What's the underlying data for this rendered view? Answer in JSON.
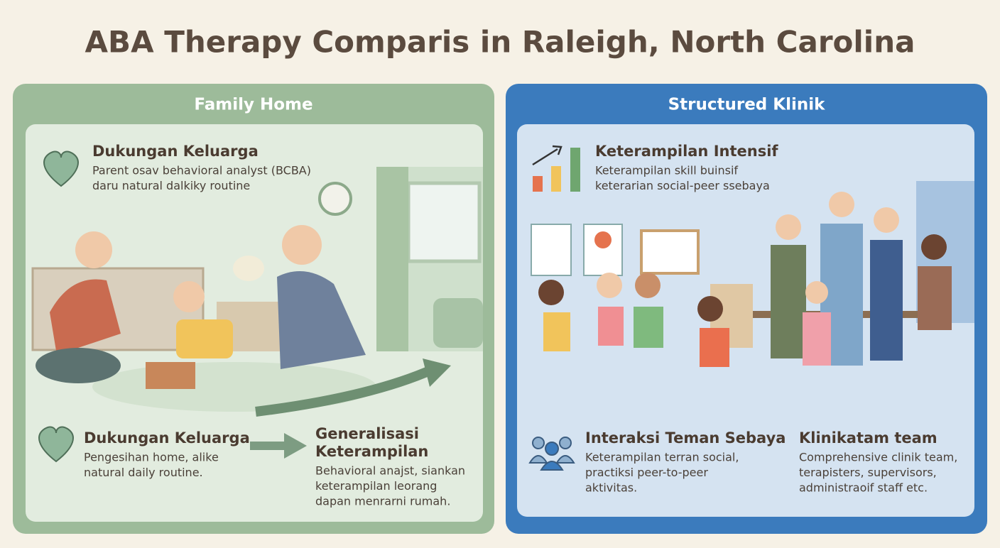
{
  "header": {
    "title": "ABA Therapy Comparis in Raleigh, North Carolina"
  },
  "panels": [
    {
      "title": "Family Home",
      "items": [
        {
          "title": [
            "Dukungan Keluarga"
          ],
          "text": [
            "Parent osav behavioral analyst (BCBA)",
            "daru natural dalkiky routine"
          ]
        },
        {
          "title": [
            "Dukungan Keluarga"
          ],
          "text": [
            "Pengesihan home, alike",
            "natural daily routine."
          ]
        },
        {
          "title": [
            "Generalisasi",
            "Keterampilan"
          ],
          "text": [
            "Behavioral anajst, siankan",
            "keterampilan leorang",
            "dapan menrarni rumah."
          ]
        }
      ]
    },
    {
      "title": "Structured Klinik",
      "items": [
        {
          "title": [
            "Keterampilan Intensif"
          ],
          "text": [
            "Keterampilan skill buinsif",
            "keterarian social-peer ssebaya"
          ]
        },
        {
          "title": [
            "Interaksi Teman Sebaya"
          ],
          "text": [
            "Keterampilan terran social,",
            "practiksi peer-to-peer",
            "aktivitas."
          ]
        },
        {
          "title": [
            "Klinikatam team"
          ],
          "text": [
            "Comprehensive clinik team,",
            "terapisters, supervisors,",
            "administraoif staff etc."
          ]
        }
      ]
    }
  ]
}
